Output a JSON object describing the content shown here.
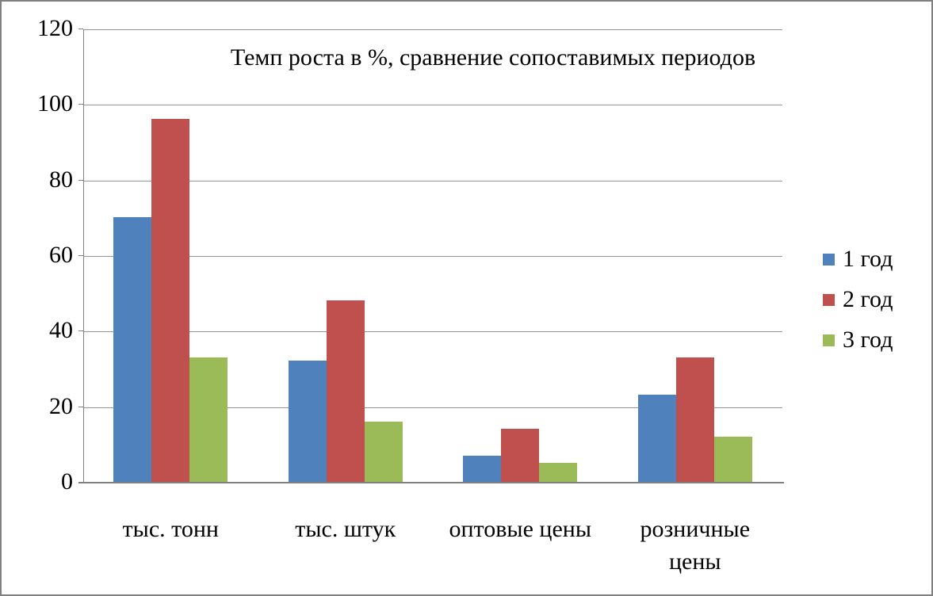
{
  "chart_data": {
    "type": "bar",
    "title": "Темп роста в %, сравнение сопоставимых периодов",
    "categories": [
      "тыс. тонн",
      "тыс. штук",
      "оптовые цены",
      "розничные\nцены"
    ],
    "series": [
      {
        "name": "1 год",
        "color": "#4F81BD",
        "values": [
          70,
          32,
          7,
          23
        ]
      },
      {
        "name": "2 год",
        "color": "#C0504D",
        "values": [
          96,
          48,
          14,
          33
        ]
      },
      {
        "name": "3 год",
        "color": "#9BBB59",
        "values": [
          33,
          16,
          5,
          12
        ]
      }
    ],
    "xlabel": "",
    "ylabel": "",
    "y_axis": {
      "ticks": [
        0,
        20,
        40,
        60,
        80,
        100,
        120
      ],
      "min": 0,
      "max": 120
    },
    "grid": "horizontal",
    "legend_position": "right"
  },
  "colors": {
    "gridline": "#969696",
    "axis": "#808080",
    "frame_border": "#808080",
    "background": "#FFFFFF",
    "text": "#000000"
  }
}
